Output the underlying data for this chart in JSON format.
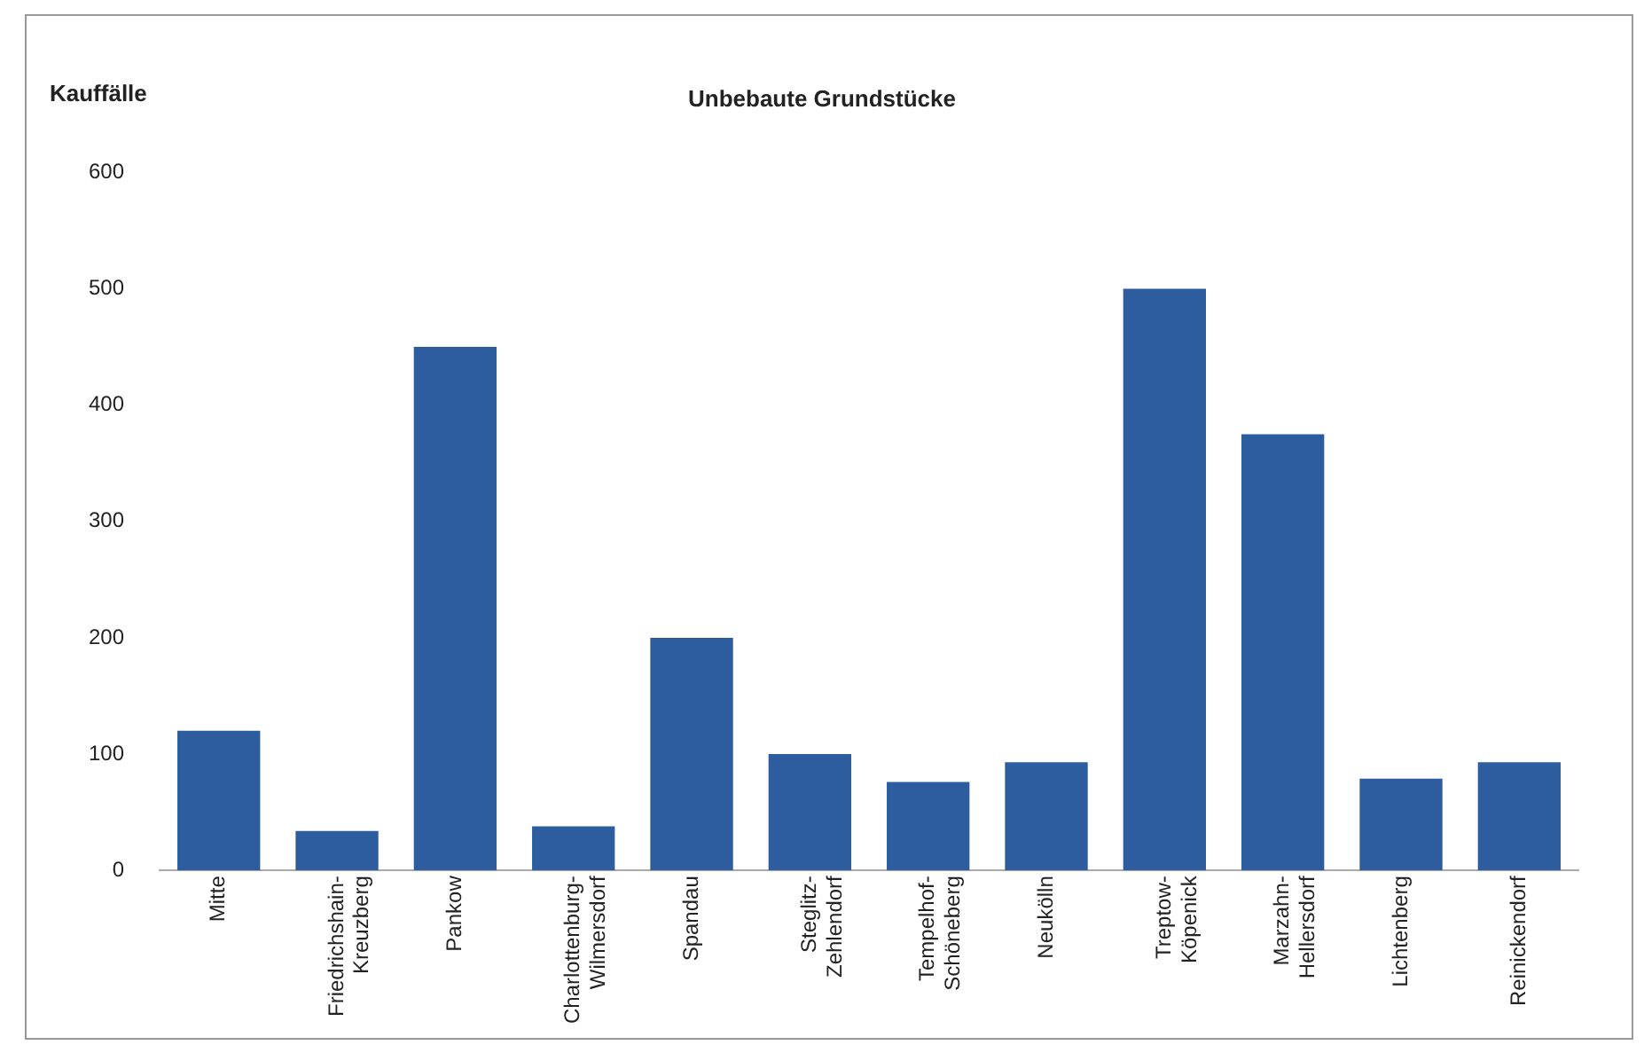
{
  "chart_data": {
    "type": "bar",
    "title": "Unbebaute Grundstücke",
    "ylabel": "Kauffälle",
    "categories": [
      "Mitte",
      "Friedrichshain-Kreuzberg",
      "Pankow",
      "Charlottenburg-Wilmersdorf",
      "Spandau",
      "Steglitz-Zehlendorf",
      "Tempelhof-Schöneberg",
      "Neukölln",
      "Treptow-Köpenick",
      "Marzahn-Hellersdorf",
      "Lichtenberg",
      "Reinickendorf"
    ],
    "values": [
      120,
      34,
      450,
      38,
      200,
      100,
      76,
      93,
      500,
      375,
      79,
      93
    ],
    "color": "#2e5d9f",
    "ylim": [
      0,
      600
    ],
    "yticks": [
      0,
      100,
      200,
      300,
      400,
      500,
      600
    ],
    "grid": false,
    "legend": false
  }
}
